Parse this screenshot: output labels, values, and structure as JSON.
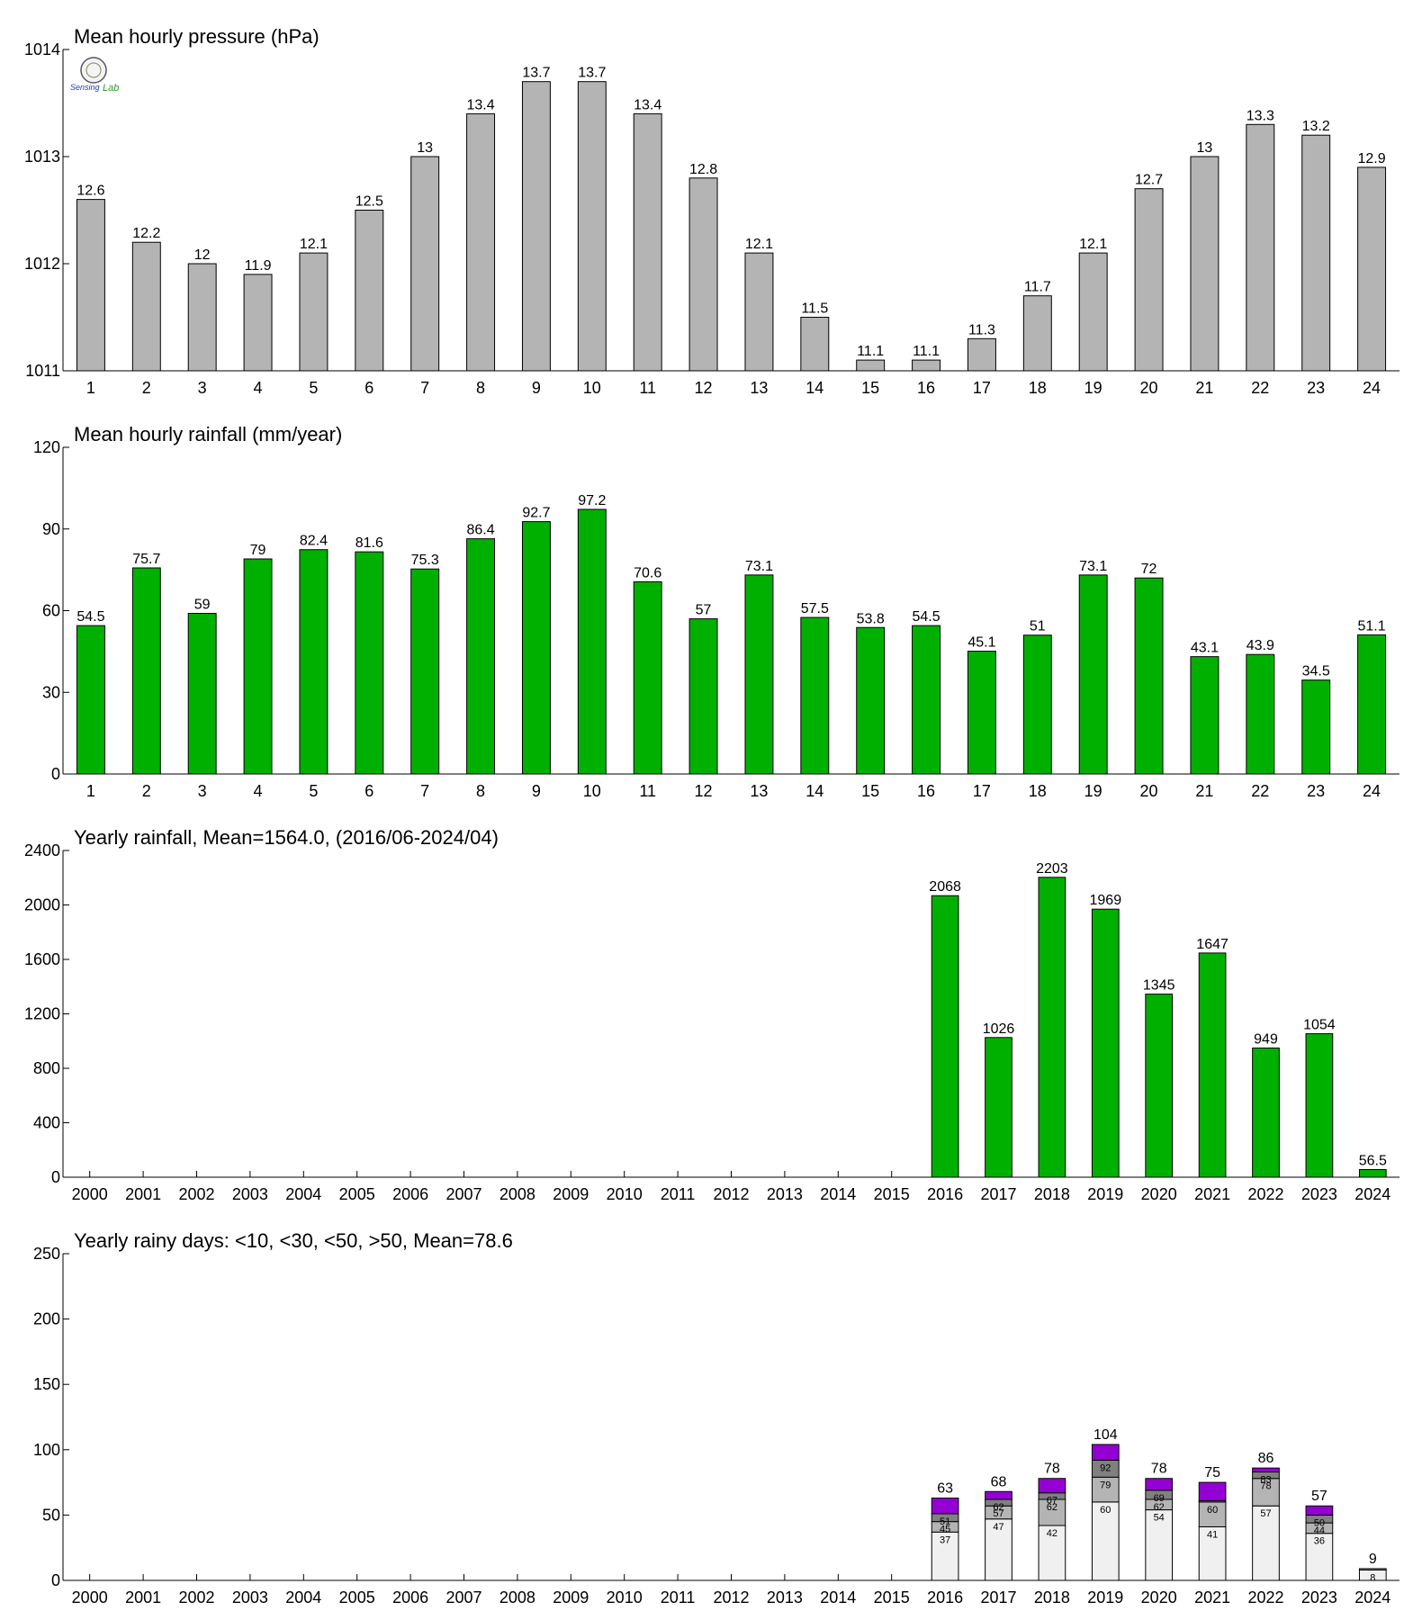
{
  "logo": {
    "text1": "Sensing",
    "text2": "Lab"
  },
  "chart_data": [
    {
      "type": "bar",
      "title": "Mean hourly pressure (hPa)",
      "categories": [
        "1",
        "2",
        "3",
        "4",
        "5",
        "6",
        "7",
        "8",
        "9",
        "10",
        "11",
        "12",
        "13",
        "14",
        "15",
        "16",
        "17",
        "18",
        "19",
        "20",
        "21",
        "22",
        "23",
        "24"
      ],
      "values": [
        1012.6,
        1012.2,
        1012.0,
        1011.9,
        1012.1,
        1012.5,
        1013.0,
        1013.4,
        1013.7,
        1013.7,
        1013.4,
        1012.8,
        1012.1,
        1011.5,
        1011.1,
        1011.1,
        1011.3,
        1011.7,
        1012.1,
        1012.7,
        1013.0,
        1013.3,
        1013.2,
        1012.9
      ],
      "labels": [
        "12.6",
        "12.2",
        "12",
        "11.9",
        "12.1",
        "12.5",
        "13",
        "13.4",
        "13.7",
        "13.7",
        "13.4",
        "12.8",
        "12.1",
        "11.5",
        "11.1",
        "11.1",
        "11.3",
        "11.7",
        "12.1",
        "12.7",
        "13",
        "13.3",
        "13.2",
        "12.9"
      ],
      "ylim": [
        1011,
        1014
      ],
      "yticks": [
        "1011",
        "1012",
        "1013",
        "1014"
      ],
      "color": "#b4b4b4"
    },
    {
      "type": "bar",
      "title": "Mean hourly rainfall (mm/year)",
      "categories": [
        "1",
        "2",
        "3",
        "4",
        "5",
        "6",
        "7",
        "8",
        "9",
        "10",
        "11",
        "12",
        "13",
        "14",
        "15",
        "16",
        "17",
        "18",
        "19",
        "20",
        "21",
        "22",
        "23",
        "24"
      ],
      "values": [
        54.5,
        75.7,
        59,
        79,
        82.4,
        81.6,
        75.3,
        86.4,
        92.7,
        97.2,
        70.6,
        57,
        73.1,
        57.5,
        53.8,
        54.5,
        45.1,
        51,
        73.1,
        72,
        43.1,
        43.9,
        34.5,
        51.1
      ],
      "labels": [
        "54.5",
        "75.7",
        "59",
        "79",
        "82.4",
        "81.6",
        "75.3",
        "86.4",
        "92.7",
        "97.2",
        "70.6",
        "57",
        "73.1",
        "57.5",
        "53.8",
        "54.5",
        "45.1",
        "51",
        "73.1",
        "72",
        "43.1",
        "43.9",
        "34.5",
        "51.1"
      ],
      "ylim": [
        0,
        120
      ],
      "yticks": [
        "0",
        "30",
        "60",
        "90",
        "120"
      ],
      "color": "#00b000"
    },
    {
      "type": "bar",
      "title": "Yearly rainfall, Mean=1564.0, (2016/06-2024/04)",
      "categories": [
        "2000",
        "2001",
        "2002",
        "2003",
        "2004",
        "2005",
        "2006",
        "2007",
        "2008",
        "2009",
        "2010",
        "2011",
        "2012",
        "2013",
        "2014",
        "2015",
        "2016",
        "2017",
        "2018",
        "2019",
        "2020",
        "2021",
        "2022",
        "2023",
        "2024"
      ],
      "values": [
        null,
        null,
        null,
        null,
        null,
        null,
        null,
        null,
        null,
        null,
        null,
        null,
        null,
        null,
        null,
        null,
        2068,
        1026,
        2203,
        1969,
        1345,
        1647,
        949,
        1054,
        56.5
      ],
      "labels": [
        "",
        "",
        "",
        "",
        "",
        "",
        "",
        "",
        "",
        "",
        "",
        "",
        "",
        "",
        "",
        "",
        "2068",
        "1026",
        "2203",
        "1969",
        "1345",
        "1647",
        "949",
        "1054",
        "56.5"
      ],
      "ylim": [
        0,
        2400
      ],
      "yticks": [
        "0",
        "400",
        "800",
        "1200",
        "1600",
        "2000",
        "2400"
      ],
      "color": "#00b000"
    },
    {
      "type": "bar",
      "title": "Yearly rainy days: <10, <30, <50, >50, Mean=78.6",
      "categories": [
        "2000",
        "2001",
        "2002",
        "2003",
        "2004",
        "2005",
        "2006",
        "2007",
        "2008",
        "2009",
        "2010",
        "2011",
        "2012",
        "2013",
        "2014",
        "2015",
        "2016",
        "2017",
        "2018",
        "2019",
        "2020",
        "2021",
        "2022",
        "2023",
        "2024"
      ],
      "stacked": true,
      "cumulative": [
        [
          null,
          null,
          null,
          null
        ],
        [
          null,
          null,
          null,
          null
        ],
        [
          null,
          null,
          null,
          null
        ],
        [
          null,
          null,
          null,
          null
        ],
        [
          null,
          null,
          null,
          null
        ],
        [
          null,
          null,
          null,
          null
        ],
        [
          null,
          null,
          null,
          null
        ],
        [
          null,
          null,
          null,
          null
        ],
        [
          null,
          null,
          null,
          null
        ],
        [
          null,
          null,
          null,
          null
        ],
        [
          null,
          null,
          null,
          null
        ],
        [
          null,
          null,
          null,
          null
        ],
        [
          null,
          null,
          null,
          null
        ],
        [
          null,
          null,
          null,
          null
        ],
        [
          null,
          null,
          null,
          null
        ],
        [
          null,
          null,
          null,
          null
        ],
        [
          37,
          45,
          51,
          63
        ],
        [
          47,
          57,
          62,
          68
        ],
        [
          42,
          62,
          67,
          78
        ],
        [
          60,
          79,
          92,
          104
        ],
        [
          54,
          62,
          69,
          78
        ],
        [
          41,
          60,
          61,
          75
        ],
        [
          57,
          78,
          83,
          86
        ],
        [
          36,
          44,
          50,
          57
        ],
        [
          8,
          9,
          9,
          9
        ]
      ],
      "cum_labels": [
        [
          "",
          "",
          "",
          ""
        ],
        [
          "",
          "",
          "",
          ""
        ],
        [
          "",
          "",
          "",
          ""
        ],
        [
          "",
          "",
          "",
          ""
        ],
        [
          "",
          "",
          "",
          ""
        ],
        [
          "",
          "",
          "",
          ""
        ],
        [
          "",
          "",
          "",
          ""
        ],
        [
          "",
          "",
          "",
          ""
        ],
        [
          "",
          "",
          "",
          ""
        ],
        [
          "",
          "",
          "",
          ""
        ],
        [
          "",
          "",
          "",
          ""
        ],
        [
          "",
          "",
          "",
          ""
        ],
        [
          "",
          "",
          "",
          ""
        ],
        [
          "",
          "",
          "",
          ""
        ],
        [
          "",
          "",
          "",
          ""
        ],
        [
          "",
          "",
          "",
          ""
        ],
        [
          "37",
          "45",
          "51",
          "63"
        ],
        [
          "47",
          "57",
          "62",
          "68"
        ],
        [
          "42",
          "62",
          "67",
          "78"
        ],
        [
          "60",
          "79",
          "92",
          "104"
        ],
        [
          "54",
          "62",
          "69",
          "78"
        ],
        [
          "41",
          "60",
          "",
          "75"
        ],
        [
          "57",
          "78",
          "83",
          "86"
        ],
        [
          "36",
          "44",
          "50",
          "57"
        ],
        [
          "8",
          "",
          "",
          "9"
        ]
      ],
      "series_colors": [
        "#f0f0f0",
        "#b4b4b4",
        "#808080",
        "#9400d3"
      ],
      "ylim": [
        0,
        250
      ],
      "yticks": [
        "0",
        "50",
        "100",
        "150",
        "200",
        "250"
      ]
    }
  ]
}
